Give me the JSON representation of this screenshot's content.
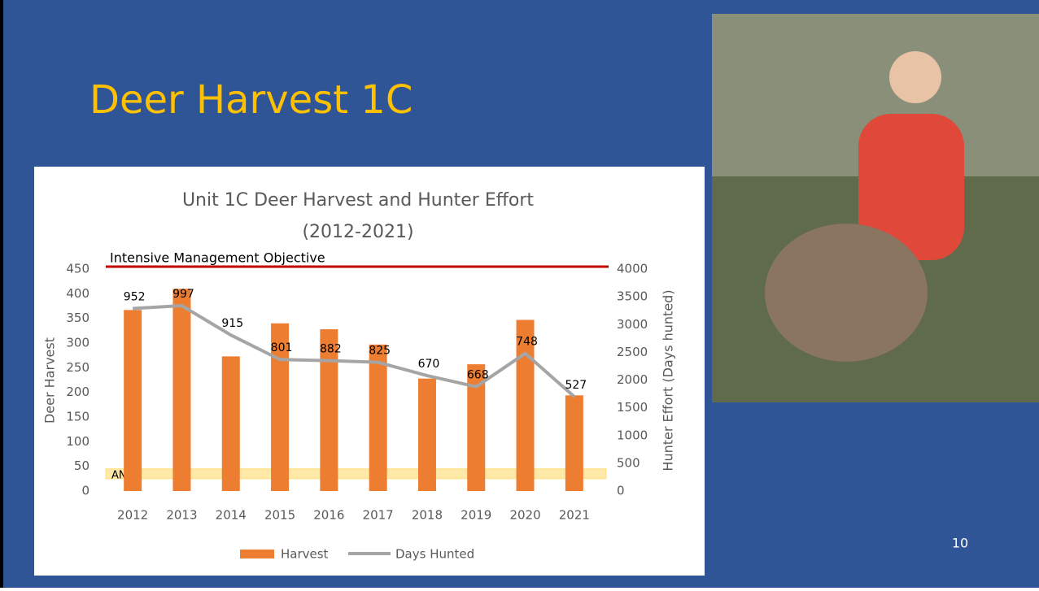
{
  "slide": {
    "title": "Deer Harvest 1C",
    "page_number": "10"
  },
  "chart_data": {
    "type": "bar-line",
    "title": "Unit 1C Deer Harvest and Hunter Effort",
    "subtitle": "(2012-2021)",
    "y_label": "Deer Harvest",
    "y2_label": "Hunter Effort (Days hunted)",
    "categories": [
      "2012",
      "2013",
      "2014",
      "2015",
      "2016",
      "2017",
      "2018",
      "2019",
      "2020",
      "2021"
    ],
    "series": [
      {
        "name": "Harvest",
        "type": "bar",
        "color": "#ed7d31",
        "values": [
          367,
          410,
          273,
          340,
          328,
          297,
          228,
          257,
          347,
          194
        ]
      },
      {
        "name": "Days Hunted",
        "type": "line",
        "axis": "y2",
        "color": "#a5a5a5",
        "values": [
          3290,
          3340,
          2810,
          2370,
          2350,
          2320,
          2080,
          1880,
          2480,
          1700
        ]
      }
    ],
    "annotations": [
      "952",
      "997",
      "915",
      "801",
      "882",
      "825",
      "670",
      "668",
      "748",
      "527"
    ],
    "reference_line": {
      "label": "Intensive Management Objective",
      "value": 450,
      "color": "#c00000"
    },
    "band": {
      "label": "ANS",
      "from": 25,
      "to": 45,
      "color": "#ffe699"
    },
    "ylim": [
      0,
      450
    ],
    "yticks": [
      0,
      50,
      100,
      150,
      200,
      250,
      300,
      350,
      400,
      450
    ],
    "y2lim": [
      0,
      4000
    ],
    "y2ticks": [
      0,
      500,
      1000,
      1500,
      2000,
      2500,
      3000,
      3500,
      4000
    ],
    "grid": false
  }
}
